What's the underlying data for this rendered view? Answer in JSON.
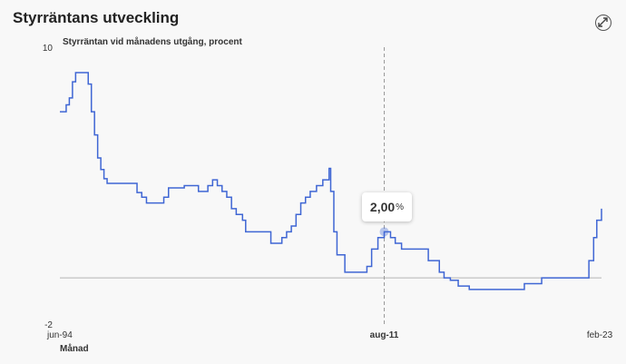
{
  "header": {
    "title": "Styrräntans utveckling",
    "expand_icon": "expand-arrows-icon"
  },
  "colors": {
    "line": "#3f66d4",
    "crosshair": "#9a9a9a",
    "zero_line": "#b5b5b5",
    "background": "#f8f8f8"
  },
  "tooltip": {
    "value": "2,00",
    "unit": "%"
  },
  "chart_data": {
    "type": "line",
    "title": "Styrräntan vid månadens utgång, procent",
    "xlabel": "Månad",
    "ylabel": "",
    "ylim": [
      -2,
      10
    ],
    "y_ticks": [
      "10",
      "-2"
    ],
    "x_ticks": [
      {
        "label": "jun-94",
        "bold": false
      },
      {
        "label": "aug-11",
        "bold": true
      },
      {
        "label": "feb-23",
        "bold": false
      }
    ],
    "x_start": "1994-06",
    "x_end": "2023-02",
    "highlight": {
      "x": "2011-08",
      "y": 2.0
    },
    "grid": false,
    "legend": "none",
    "series": [
      {
        "points": [
          [
            "1994-06",
            7.2
          ],
          [
            "1994-08",
            7.2
          ],
          [
            "1994-10",
            7.5
          ],
          [
            "1994-12",
            7.8
          ],
          [
            "1995-02",
            8.5
          ],
          [
            "1995-04",
            8.9
          ],
          [
            "1995-06",
            8.9
          ],
          [
            "1995-09",
            8.9
          ],
          [
            "1995-12",
            8.4
          ],
          [
            "1996-02",
            7.2
          ],
          [
            "1996-04",
            6.2
          ],
          [
            "1996-06",
            5.2
          ],
          [
            "1996-08",
            4.7
          ],
          [
            "1996-10",
            4.3
          ],
          [
            "1996-12",
            4.1
          ],
          [
            "1997-06",
            4.1
          ],
          [
            "1998-01",
            4.1
          ],
          [
            "1998-04",
            4.1
          ],
          [
            "1998-07",
            3.7
          ],
          [
            "1998-10",
            3.5
          ],
          [
            "1999-01",
            3.25
          ],
          [
            "1999-06",
            3.25
          ],
          [
            "1999-12",
            3.5
          ],
          [
            "2000-03",
            3.9
          ],
          [
            "2000-10",
            3.9
          ],
          [
            "2001-01",
            4.0
          ],
          [
            "2001-07",
            4.0
          ],
          [
            "2001-10",
            3.75
          ],
          [
            "2002-01",
            3.75
          ],
          [
            "2002-04",
            4.0
          ],
          [
            "2002-07",
            4.25
          ],
          [
            "2002-10",
            4.0
          ],
          [
            "2003-01",
            3.75
          ],
          [
            "2003-04",
            3.5
          ],
          [
            "2003-07",
            3.0
          ],
          [
            "2003-10",
            2.75
          ],
          [
            "2004-02",
            2.5
          ],
          [
            "2004-04",
            2.0
          ],
          [
            "2005-06",
            2.0
          ],
          [
            "2005-08",
            1.5
          ],
          [
            "2006-01",
            1.5
          ],
          [
            "2006-03",
            1.75
          ],
          [
            "2006-06",
            2.0
          ],
          [
            "2006-09",
            2.25
          ],
          [
            "2006-12",
            2.75
          ],
          [
            "2007-03",
            3.25
          ],
          [
            "2007-06",
            3.5
          ],
          [
            "2007-09",
            3.75
          ],
          [
            "2008-01",
            4.0
          ],
          [
            "2008-05",
            4.25
          ],
          [
            "2008-09",
            4.75
          ],
          [
            "2008-10",
            3.75
          ],
          [
            "2008-12",
            2.0
          ],
          [
            "2009-02",
            1.0
          ],
          [
            "2009-07",
            0.25
          ],
          [
            "2010-06",
            0.25
          ],
          [
            "2010-09",
            0.5
          ],
          [
            "2010-12",
            1.25
          ],
          [
            "2011-04",
            1.75
          ],
          [
            "2011-08",
            2.0
          ],
          [
            "2011-12",
            1.75
          ],
          [
            "2012-03",
            1.5
          ],
          [
            "2012-07",
            1.25
          ],
          [
            "2013-12",
            0.75
          ],
          [
            "2014-05",
            0.75
          ],
          [
            "2014-07",
            0.25
          ],
          [
            "2014-10",
            0.0
          ],
          [
            "2015-02",
            -0.1
          ],
          [
            "2015-07",
            -0.35
          ],
          [
            "2016-02",
            -0.5
          ],
          [
            "2018-12",
            -0.5
          ],
          [
            "2019-01",
            -0.25
          ],
          [
            "2019-12",
            0.0
          ],
          [
            "2022-04",
            0.0
          ],
          [
            "2022-06",
            0.75
          ],
          [
            "2022-09",
            1.75
          ],
          [
            "2022-11",
            2.5
          ],
          [
            "2023-02",
            3.0
          ]
        ]
      }
    ]
  }
}
